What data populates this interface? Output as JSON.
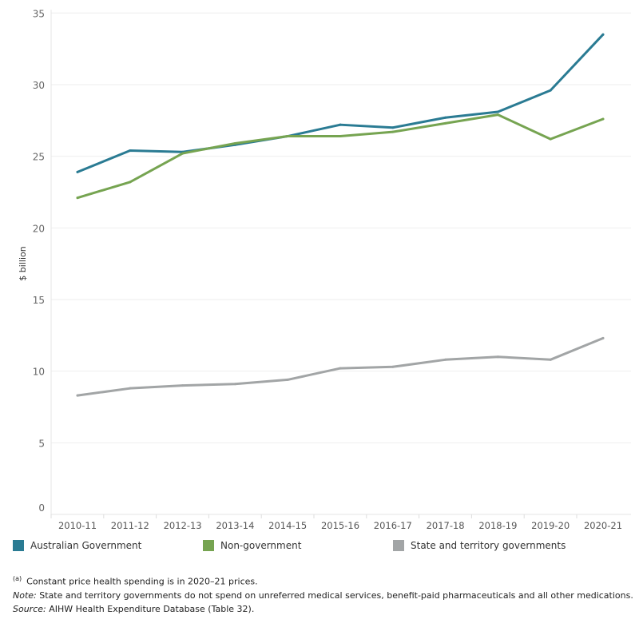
{
  "chart_data": {
    "type": "line",
    "ylabel": "$ billion",
    "xlabel": "",
    "ylim": [
      0,
      35
    ],
    "yticks": [
      0,
      5,
      10,
      15,
      20,
      25,
      30,
      35
    ],
    "grid": true,
    "legend_position": "bottom",
    "categories": [
      "2010-11",
      "2011-12",
      "2012-13",
      "2013-14",
      "2014-15",
      "2015-16",
      "2016-17",
      "2017-18",
      "2018-19",
      "2019-20",
      "2020-21"
    ],
    "series": [
      {
        "name": "Australian Government",
        "color": "#2a7b93",
        "values": [
          23.9,
          25.4,
          25.3,
          25.8,
          26.4,
          27.2,
          27.0,
          27.7,
          28.1,
          29.6,
          33.5
        ]
      },
      {
        "name": "Non-government",
        "color": "#76a451",
        "values": [
          22.1,
          23.2,
          25.2,
          25.9,
          26.4,
          26.4,
          26.7,
          27.3,
          27.9,
          26.2,
          27.6
        ]
      },
      {
        "name": "State and territory governments",
        "color": "#a2a5a6",
        "values": [
          8.3,
          8.8,
          9.0,
          9.1,
          9.4,
          10.2,
          10.3,
          10.8,
          11.0,
          10.8,
          12.3
        ]
      }
    ]
  },
  "notes": {
    "footnote_marker": "(a)",
    "footnote": "Constant price health spending is in 2020–21 prices.",
    "note_label": "Note:",
    "note": "State and territory governments do not spend on unreferred medical services, benefit-paid pharmaceuticals and all other medications.",
    "source_label": "Source:",
    "source": "AIHW Health Expenditure Database (Table 32)."
  }
}
